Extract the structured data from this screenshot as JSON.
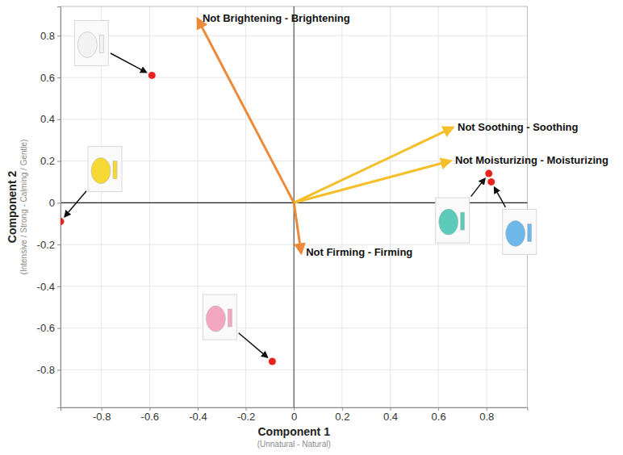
{
  "chart_data": {
    "type": "scatter",
    "x_label": "Component 1",
    "x_subtitle": "(Unnatural - Natural)",
    "y_label": "Component 2",
    "y_subtitle": "(Intensive / Strong - Calming / Gentle)",
    "xlim": [
      -0.97,
      0.97
    ],
    "ylim": [
      -0.98,
      0.94
    ],
    "xticks": [
      -0.8,
      -0.6,
      -0.4,
      -0.2,
      0,
      0.2,
      0.4,
      0.6,
      0.8
    ],
    "yticks": [
      -0.8,
      -0.6,
      -0.4,
      -0.2,
      0,
      0.2,
      0.4,
      0.6,
      0.8
    ],
    "grid": true,
    "series": [
      {
        "color": "#e8231e",
        "marker": "circle",
        "x": [
          -0.59,
          -0.97,
          -0.09,
          0.81,
          0.82
        ],
        "values": [
          0.61,
          -0.09,
          -0.76,
          0.14,
          0.1
        ]
      }
    ],
    "loadings": {
      "labels": [
        "Not Brightening - Brightening",
        "Not Soothing - Soothing",
        "Not Moisturizing - Moisturizing",
        "Not Firming - Firming"
      ],
      "x": [
        -0.4,
        0.66,
        0.65,
        0.03
      ],
      "values": [
        0.88,
        0.36,
        0.2,
        -0.24
      ],
      "colors": [
        "#ec8a3a",
        "#f4bf2a",
        "#f4bf2a",
        "#ec8a3a"
      ]
    }
  }
}
